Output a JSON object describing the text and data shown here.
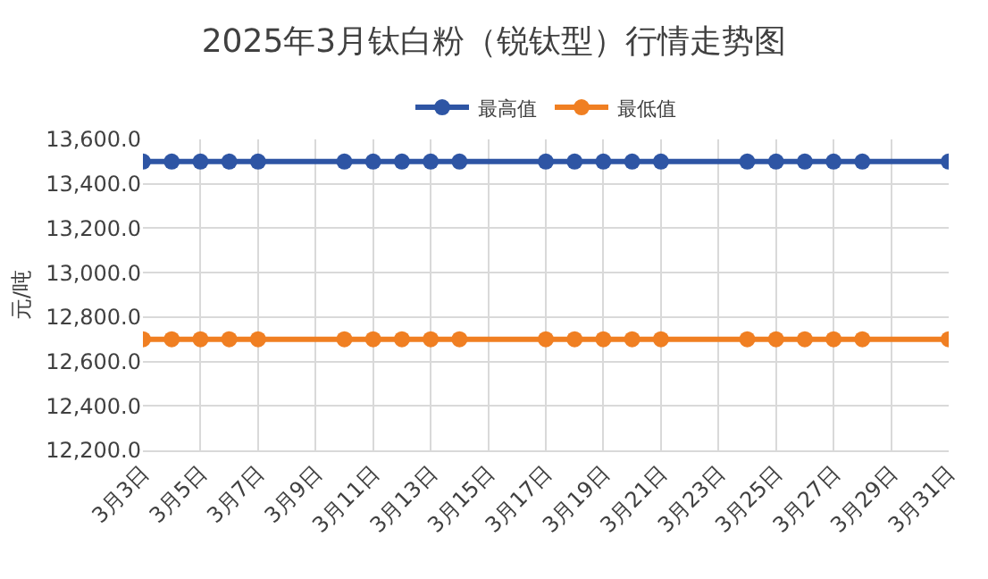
{
  "chart_data": {
    "type": "line",
    "title": "2025年3月钛白粉（锐钛型）行情走势图",
    "ylabel": "元/吨",
    "x": [
      "--03-03",
      "--03-04",
      "--03-05",
      "--03-06",
      "--03-07",
      "--03-10",
      "--03-11",
      "--03-12",
      "--03-13",
      "--03-14",
      "--03-17",
      "--03-18",
      "--03-19",
      "--03-20",
      "--03-21",
      "--03-24",
      "--03-25",
      "--03-26",
      "--03-27",
      "--03-28",
      "--03-31"
    ],
    "series": [
      {
        "name": "最高值",
        "color": "#2e55a4",
        "values": [
          13500,
          13500,
          13500,
          13500,
          13500,
          13500,
          13500,
          13500,
          13500,
          13500,
          13500,
          13500,
          13500,
          13500,
          13500,
          13500,
          13500,
          13500,
          13500,
          13500,
          13500
        ]
      },
      {
        "name": "最低值",
        "color": "#f07f22",
        "values": [
          12700,
          12700,
          12700,
          12700,
          12700,
          12700,
          12700,
          12700,
          12700,
          12700,
          12700,
          12700,
          12700,
          12700,
          12700,
          12700,
          12700,
          12700,
          12700,
          12700,
          12700
        ]
      }
    ],
    "xlim": [
      "--03-03",
      "--03-31"
    ],
    "xticks": [
      {
        "value": "--03-03",
        "label": "3月3日"
      },
      {
        "value": "--03-05",
        "label": "3月5日"
      },
      {
        "value": "--03-07",
        "label": "3月7日"
      },
      {
        "value": "--03-09",
        "label": "3月9日"
      },
      {
        "value": "--03-11",
        "label": "3月11日"
      },
      {
        "value": "--03-13",
        "label": "3月13日"
      },
      {
        "value": "--03-15",
        "label": "3月15日"
      },
      {
        "value": "--03-17",
        "label": "3月17日"
      },
      {
        "value": "--03-19",
        "label": "3月19日"
      },
      {
        "value": "--03-21",
        "label": "3月21日"
      },
      {
        "value": "--03-23",
        "label": "3月23日"
      },
      {
        "value": "--03-25",
        "label": "3月25日"
      },
      {
        "value": "--03-27",
        "label": "3月27日"
      },
      {
        "value": "--03-29",
        "label": "3月29日"
      },
      {
        "value": "--03-31",
        "label": "3月31日"
      }
    ],
    "ylim": [
      12200,
      13600
    ],
    "yticks": [
      {
        "value": 12200,
        "label": "12,200.0"
      },
      {
        "value": 12400,
        "label": "12,400.0"
      },
      {
        "value": 12600,
        "label": "12,600.0"
      },
      {
        "value": 12800,
        "label": "12,800.0"
      },
      {
        "value": 13000,
        "label": "13,000.0"
      },
      {
        "value": 13200,
        "label": "13,200.0"
      },
      {
        "value": 13400,
        "label": "13,400.0"
      },
      {
        "value": 13600,
        "label": "13,600.0"
      }
    ],
    "grid": true,
    "legend": "top",
    "marker": "circle",
    "line_style": "solid"
  }
}
